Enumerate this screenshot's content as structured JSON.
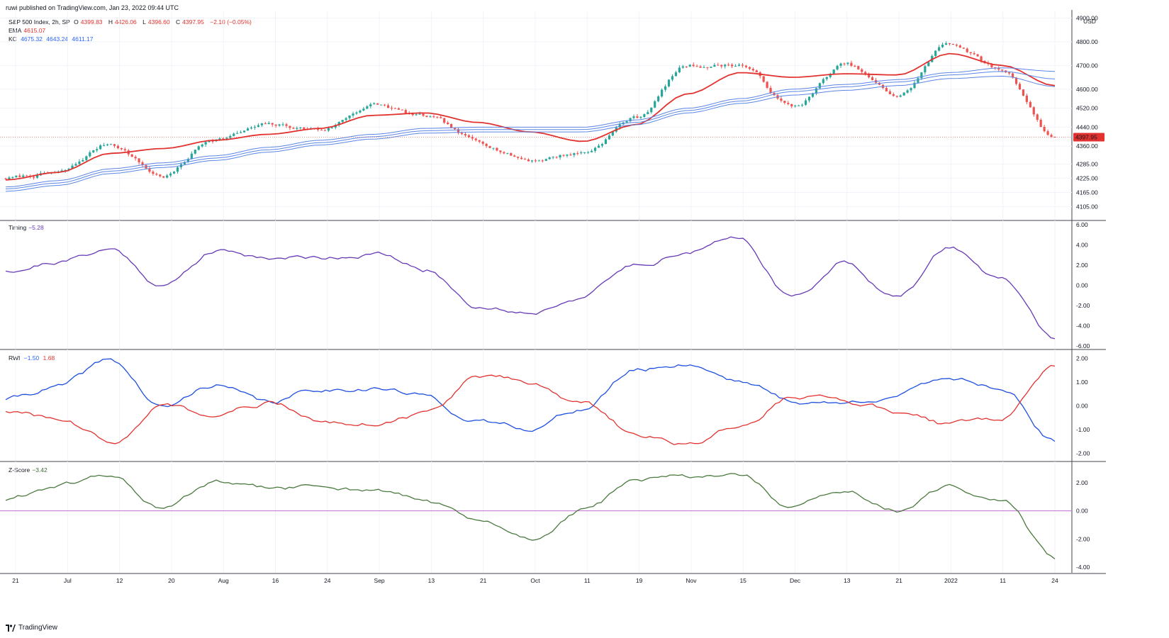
{
  "publisher": "ruwi published on TradingView.com, Jan 23, 2022 09:44 UTC",
  "footer": {
    "brand": "TradingView",
    "logo_icon": "tradingview-logo-icon"
  },
  "colors": {
    "price_up": "#26a69a",
    "price_down": "#ef5350",
    "ema": "#e2322f",
    "kc": "#5b86e5",
    "timing": "#673ab7",
    "rwi_high": "#1e4fe0",
    "rwi_low": "#e2322f",
    "zscore": "#4a7a3f",
    "zero_line": "#c77fd6",
    "last_price_tag": "#e2322f"
  },
  "header": {
    "symbol": "S&P 500 Index, 2h, SP",
    "ohlc": {
      "o_label": "O",
      "o": "4399.83",
      "h_label": "H",
      "h": "4426.06",
      "l_label": "L",
      "l": "4396.60",
      "c_label": "C",
      "c": "4397.95",
      "chg": "−2.10 (−0.05%)"
    },
    "ema": {
      "label": "EMA",
      "value": "4615.07"
    },
    "kc": {
      "label": "KC",
      "upper": "4675.32",
      "mid": "4643.24",
      "lower": "4611.17"
    }
  },
  "currency": "USD",
  "last_price": "4397.95",
  "chart_data": [
    {
      "type": "candlestick",
      "title": "S&P 500 Index, 2h, SP",
      "ylabel": "USD",
      "y_ticks": [
        "4900.00",
        "4800.00",
        "4700.00",
        "4600.00",
        "4520.00",
        "4440.00",
        "4360.00",
        "4285.00",
        "4225.00",
        "4165.00",
        "4105.00"
      ],
      "x": [
        "Jun 21",
        "Jul",
        "Jul 12",
        "Jul 20",
        "Aug",
        "Aug 16",
        "Aug 24",
        "Sep",
        "Sep 13",
        "Sep 21",
        "Oct",
        "Oct 11",
        "Oct 19",
        "Nov",
        "Nov 15",
        "Dec",
        "Dec 13",
        "Dec 21",
        "2022",
        "Jan 11",
        "Jan 24"
      ],
      "close": [
        4225,
        4245,
        4370,
        4235,
        4395,
        4445,
        4430,
        4535,
        4480,
        4375,
        4305,
        4335,
        4480,
        4700,
        4705,
        4525,
        4700,
        4570,
        4795,
        4680,
        4398
      ],
      "series": [
        {
          "name": "EMA",
          "values": [
            4218,
            4250,
            4330,
            4350,
            4385,
            4410,
            4435,
            4490,
            4500,
            4460,
            4420,
            4380,
            4450,
            4580,
            4670,
            4650,
            4665,
            4660,
            4750,
            4700,
            4615
          ]
        },
        {
          "name": "KC upper",
          "values": [
            4188,
            4215,
            4265,
            4290,
            4320,
            4355,
            4385,
            4410,
            4435,
            4440,
            4440,
            4440,
            4470,
            4520,
            4560,
            4600,
            4620,
            4640,
            4670,
            4690,
            4675
          ]
        },
        {
          "name": "KC mid",
          "values": [
            4180,
            4205,
            4255,
            4280,
            4310,
            4345,
            4375,
            4400,
            4425,
            4430,
            4430,
            4430,
            4460,
            4510,
            4550,
            4590,
            4610,
            4630,
            4660,
            4675,
            4643
          ]
        },
        {
          "name": "KC lower",
          "values": [
            4170,
            4195,
            4245,
            4270,
            4300,
            4335,
            4365,
            4390,
            4415,
            4420,
            4420,
            4420,
            4450,
            4500,
            4540,
            4575,
            4595,
            4615,
            4645,
            4655,
            4611
          ]
        }
      ],
      "ylim": [
        4080,
        4910
      ]
    },
    {
      "type": "line",
      "title": "Timing",
      "value_label": "−5.28",
      "y_ticks": [
        "6.00",
        "4.00",
        "2.00",
        "0.00",
        "-2.00",
        "-4.00",
        "-6.00"
      ],
      "ylim": [
        -6,
        6
      ],
      "x": [
        "Jun 21",
        "Jul",
        "Jul 12",
        "Jul 20",
        "Aug",
        "Aug 16",
        "Aug 24",
        "Sep",
        "Sep 13",
        "Sep 21",
        "Oct",
        "Oct 11",
        "Oct 19",
        "Nov",
        "Nov 15",
        "Dec",
        "Dec 13",
        "Dec 21",
        "2022",
        "Jan 11",
        "Jan 24"
      ],
      "values": [
        1.5,
        2.4,
        3.6,
        0.0,
        3.4,
        2.8,
        2.8,
        3.2,
        1.5,
        -2.0,
        -2.6,
        -1.0,
        2.0,
        3.4,
        4.7,
        -1.2,
        2.4,
        -1.2,
        3.8,
        0.5,
        -5.28
      ]
    },
    {
      "type": "line",
      "title": "RWI",
      "y_ticks": [
        "2.00",
        "1.00",
        "0.00",
        "-1.00",
        "-2.00"
      ],
      "ylim": [
        -2.2,
        2.2
      ],
      "x": [
        "Jun 21",
        "Jul",
        "Jul 12",
        "Jul 20",
        "Aug",
        "Aug 16",
        "Aug 24",
        "Sep",
        "Sep 13",
        "Sep 21",
        "Oct",
        "Oct 11",
        "Oct 19",
        "Nov",
        "Nov 15",
        "Dec",
        "Dec 13",
        "Dec 21",
        "2022",
        "Jan 11",
        "Jan 24"
      ],
      "series": [
        {
          "name": "",
          "value_label": "−1.50",
          "values": [
            0.3,
            0.8,
            1.9,
            -0.1,
            0.9,
            0.1,
            0.7,
            0.8,
            0.4,
            -0.7,
            -0.9,
            -0.1,
            1.5,
            1.8,
            1.1,
            0.2,
            0.1,
            0.5,
            1.2,
            0.8,
            -1.5
          ]
        },
        {
          "name": "",
          "value_label": "1.68",
          "values": [
            -0.2,
            -0.6,
            -1.5,
            0.1,
            -0.5,
            0.1,
            -0.6,
            -0.7,
            -0.3,
            1.2,
            1.0,
            0.1,
            -1.2,
            -1.6,
            -0.9,
            0.4,
            0.2,
            -0.2,
            -0.8,
            -0.5,
            1.68
          ]
        }
      ]
    },
    {
      "type": "line",
      "title": "Z-Score",
      "value_label": "−3.42",
      "y_ticks": [
        "2.00",
        "0.00",
        "-2.00",
        "-4.00"
      ],
      "ylim": [
        -4.2,
        3.2
      ],
      "baseline": 0,
      "x": [
        "Jun 21",
        "Jul",
        "Jul 12",
        "Jul 20",
        "Aug",
        "Aug 16",
        "Aug 24",
        "Sep",
        "Sep 13",
        "Sep 21",
        "Oct",
        "Oct 11",
        "Oct 19",
        "Nov",
        "Nov 15",
        "Dec",
        "Dec 13",
        "Dec 21",
        "2022",
        "Jan 11",
        "Jan 24"
      ],
      "values": [
        0.8,
        1.8,
        2.5,
        0.1,
        2.0,
        1.5,
        1.7,
        1.5,
        0.7,
        -0.8,
        -2.0,
        0.0,
        2.0,
        2.4,
        2.6,
        0.1,
        1.4,
        0.0,
        1.6,
        0.8,
        -3.42
      ]
    }
  ],
  "x_axis": {
    "labels": [
      "21",
      "Jul",
      "12",
      "20",
      "Aug",
      "16",
      "24",
      "Sep",
      "13",
      "21",
      "Oct",
      "11",
      "19",
      "Nov",
      "15",
      "Dec",
      "13",
      "21",
      "2022",
      "11",
      "24"
    ]
  }
}
